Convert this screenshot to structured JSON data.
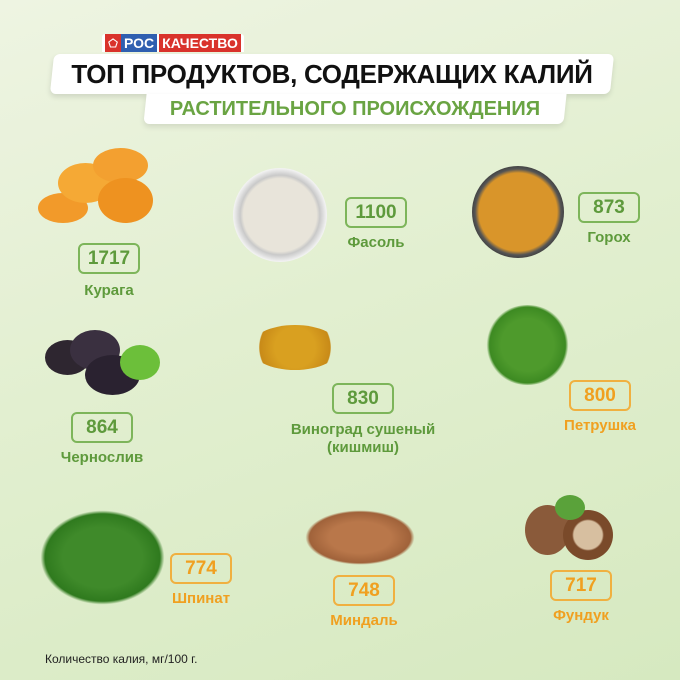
{
  "logo": {
    "ros": "РОС",
    "kach": "КАЧЕСТВО"
  },
  "header": {
    "title": "ТОП ПРОДУКТОВ, СОДЕРЖАЩИХ КАЛИЙ",
    "subtitle": "РАСТИТЕЛЬНОГО ПРОИСХОЖДЕНИЯ"
  },
  "colors": {
    "green": "#5e9a3c",
    "orange": "#f0a020"
  },
  "items": [
    {
      "name": "Курага",
      "value": "1717",
      "color": "green"
    },
    {
      "name": "Фасоль",
      "value": "1100",
      "color": "green"
    },
    {
      "name": "Горох",
      "value": "873",
      "color": "green"
    },
    {
      "name": "Чернослив",
      "value": "864",
      "color": "green"
    },
    {
      "name": "Виноград сушеный",
      "name2": "(кишмиш)",
      "value": "830",
      "color": "green"
    },
    {
      "name": "Петрушка",
      "value": "800",
      "color": "orange"
    },
    {
      "name": "Шпинат",
      "value": "774",
      "color": "orange"
    },
    {
      "name": "Миндаль",
      "value": "748",
      "color": "orange"
    },
    {
      "name": "Фундук",
      "value": "717",
      "color": "orange"
    }
  ],
  "footnote": "Количество калия, мг/100 г."
}
